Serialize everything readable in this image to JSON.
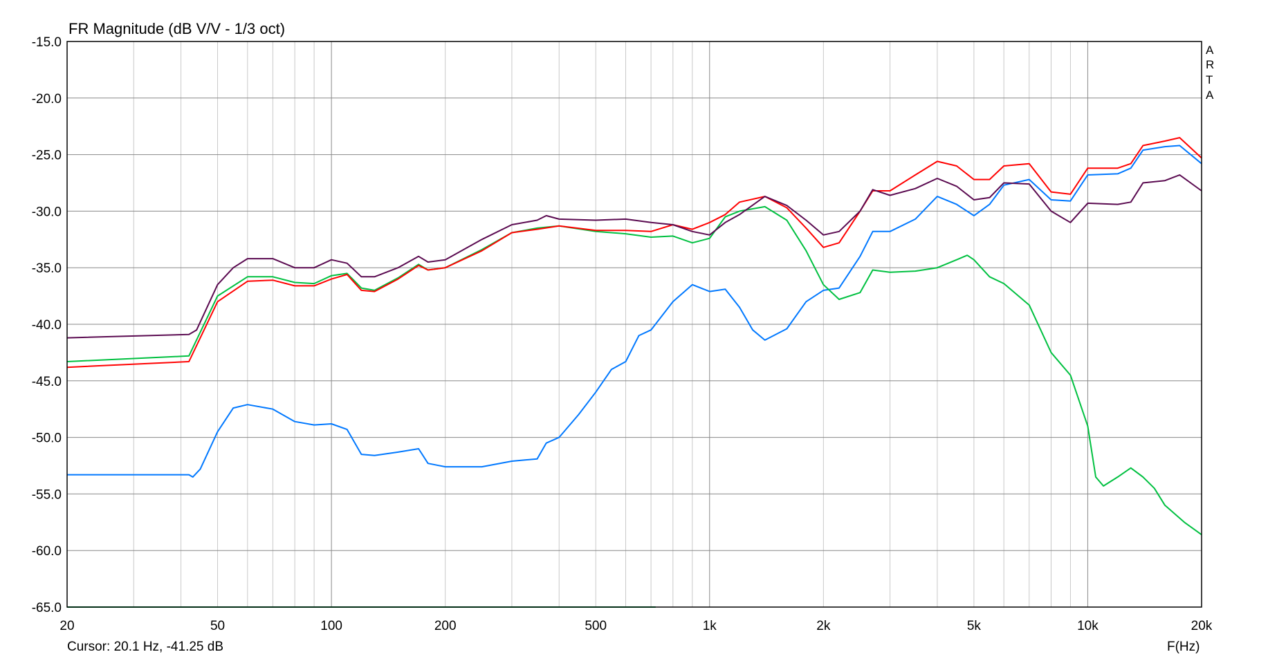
{
  "chart_data": {
    "type": "line",
    "title": "FR Magnitude (dB V/V - 1/3 oct)",
    "xlabel": "F(Hz)",
    "ylabel": "",
    "xscale": "log",
    "xlim": [
      20,
      20000
    ],
    "ylim": [
      -65,
      -15
    ],
    "grid": true,
    "yticks": [
      "-15.0",
      "-20.0",
      "-25.0",
      "-30.0",
      "-35.0",
      "-40.0",
      "-45.0",
      "-50.0",
      "-55.0",
      "-60.0",
      "-65.0"
    ],
    "xticks": [
      {
        "value": 20,
        "label": "20"
      },
      {
        "value": 50,
        "label": "50"
      },
      {
        "value": 100,
        "label": "100"
      },
      {
        "value": 200,
        "label": "200"
      },
      {
        "value": 500,
        "label": "500"
      },
      {
        "value": 1000,
        "label": "1k"
      },
      {
        "value": 2000,
        "label": "2k"
      },
      {
        "value": 5000,
        "label": "5k"
      },
      {
        "value": 10000,
        "label": "10k"
      },
      {
        "value": 20000,
        "label": "20k"
      }
    ],
    "series": [
      {
        "color": "#00b050",
        "x": [
          20,
          720
        ],
        "y": [
          -65,
          -65
        ]
      },
      {
        "color": "#0078ff",
        "x": [
          20,
          42,
          43,
          45,
          50,
          55,
          60,
          70,
          80,
          90,
          100,
          110,
          120,
          130,
          150,
          170,
          180,
          200,
          250,
          300,
          350,
          370,
          400,
          450,
          500,
          550,
          600,
          650,
          700,
          800,
          900,
          1000,
          1100,
          1200,
          1300,
          1400,
          1600,
          1800,
          2000,
          2200,
          2500,
          2700,
          3000,
          3500,
          4000,
          4500,
          5000,
          5500,
          6000,
          7000,
          8000,
          9000,
          10000,
          12000,
          13000,
          14000,
          16000,
          17500,
          20000
        ],
        "y": [
          -53.3,
          -53.3,
          -53.5,
          -52.8,
          -49.5,
          -47.4,
          -47.1,
          -47.5,
          -48.6,
          -48.9,
          -48.8,
          -49.3,
          -51.5,
          -51.6,
          -51.3,
          -51,
          -52.3,
          -52.6,
          -52.6,
          -52.1,
          -51.9,
          -50.5,
          -50,
          -48,
          -46,
          -44,
          -43.3,
          -41,
          -40.5,
          -38,
          -36.5,
          -37.1,
          -36.9,
          -38.5,
          -40.5,
          -41.4,
          -40.4,
          -38,
          -37,
          -36.8,
          -34,
          -31.8,
          -31.8,
          -30.7,
          -28.7,
          -29.4,
          -30.4,
          -29.4,
          -27.7,
          -27.2,
          -29,
          -29.1,
          -26.8,
          -26.7,
          -26.2,
          -24.6,
          -24.3,
          -24.2,
          -25.8
        ]
      },
      {
        "color": "#00c040",
        "x": [
          20,
          42,
          50,
          60,
          70,
          80,
          90,
          100,
          110,
          120,
          130,
          150,
          170,
          180,
          200,
          250,
          300,
          350,
          400,
          500,
          600,
          700,
          800,
          900,
          1000,
          1100,
          1200,
          1400,
          1600,
          1800,
          2000,
          2200,
          2500,
          2700,
          3000,
          3500,
          4000,
          4500,
          4800,
          5000,
          5500,
          6000,
          7000,
          8000,
          9000,
          10000,
          10500,
          11000,
          12000,
          13000,
          14000,
          15000,
          16000,
          18000,
          20000
        ],
        "y": [
          -43.3,
          -42.8,
          -37.5,
          -35.8,
          -35.8,
          -36.3,
          -36.4,
          -35.7,
          -35.5,
          -36.8,
          -37,
          -35.9,
          -34.7,
          -35.2,
          -35,
          -33.4,
          -31.9,
          -31.5,
          -31.3,
          -31.8,
          -32,
          -32.3,
          -32.2,
          -32.8,
          -32.4,
          -30.5,
          -30,
          -29.6,
          -30.8,
          -33.5,
          -36.5,
          -37.8,
          -37.2,
          -35.2,
          -35.4,
          -35.3,
          -35,
          -34.3,
          -33.9,
          -34.3,
          -35.8,
          -36.4,
          -38.3,
          -42.5,
          -44.5,
          -49,
          -53.5,
          -54.3,
          -53.5,
          -52.7,
          -53.5,
          -54.5,
          -56,
          -57.5,
          -58.6
        ]
      },
      {
        "color": "#ff0000",
        "x": [
          20,
          42,
          50,
          60,
          70,
          80,
          90,
          100,
          110,
          120,
          130,
          150,
          170,
          180,
          200,
          250,
          300,
          350,
          400,
          500,
          600,
          700,
          800,
          900,
          1000,
          1100,
          1200,
          1400,
          1600,
          1800,
          2000,
          2200,
          2500,
          2700,
          3000,
          3500,
          4000,
          4500,
          5000,
          5500,
          6000,
          7000,
          8000,
          9000,
          10000,
          12000,
          13000,
          14000,
          16000,
          17500,
          20000
        ],
        "y": [
          -43.8,
          -43.3,
          -38,
          -36.2,
          -36.1,
          -36.6,
          -36.6,
          -36,
          -35.6,
          -37,
          -37.1,
          -36,
          -34.8,
          -35.2,
          -35,
          -33.5,
          -31.9,
          -31.6,
          -31.3,
          -31.7,
          -31.7,
          -31.8,
          -31.2,
          -31.6,
          -31,
          -30.3,
          -29.2,
          -28.7,
          -29.7,
          -31.5,
          -33.2,
          -32.8,
          -30,
          -28.2,
          -28.2,
          -26.8,
          -25.6,
          -26,
          -27.2,
          -27.2,
          -26,
          -25.8,
          -28.3,
          -28.5,
          -26.2,
          -26.2,
          -25.8,
          -24.2,
          -23.8,
          -23.5,
          -25.3
        ]
      },
      {
        "color": "#5a0a50",
        "x": [
          20,
          42,
          44,
          50,
          55,
          60,
          70,
          80,
          90,
          100,
          110,
          120,
          130,
          150,
          170,
          180,
          200,
          250,
          300,
          350,
          370,
          400,
          500,
          600,
          700,
          800,
          900,
          1000,
          1100,
          1200,
          1400,
          1600,
          1800,
          2000,
          2200,
          2500,
          2700,
          3000,
          3500,
          4000,
          4500,
          5000,
          5500,
          6000,
          7000,
          8000,
          9000,
          10000,
          12000,
          13000,
          14000,
          16000,
          17500,
          20000
        ],
        "y": [
          -41.2,
          -40.9,
          -40.5,
          -36.5,
          -35,
          -34.2,
          -34.2,
          -35,
          -35,
          -34.3,
          -34.6,
          -35.8,
          -35.8,
          -35,
          -34,
          -34.5,
          -34.3,
          -32.5,
          -31.2,
          -30.8,
          -30.4,
          -30.7,
          -30.8,
          -30.7,
          -31,
          -31.2,
          -31.8,
          -32.1,
          -31,
          -30.3,
          -28.7,
          -29.5,
          -30.8,
          -32.1,
          -31.8,
          -30,
          -28.1,
          -28.6,
          -28,
          -27.1,
          -27.8,
          -29,
          -28.8,
          -27.5,
          -27.6,
          -30,
          -31,
          -29.3,
          -29.4,
          -29.2,
          -27.5,
          -27.3,
          -26.8,
          -28.2
        ]
      }
    ]
  },
  "watermark": [
    "A",
    "R",
    "T",
    "A"
  ],
  "cursor_readout": "Cursor: 20.1 Hz, -41.25 dB"
}
